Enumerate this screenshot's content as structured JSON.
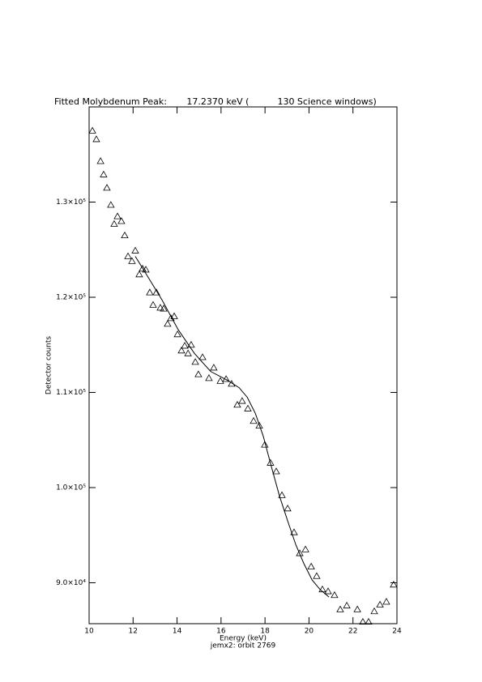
{
  "chart_data": {
    "type": "scatter",
    "title": "Fitted Molybdenum Peak:       17.2370 keV (          130 Science windows)",
    "x_label": "Energy (keV)",
    "subtitle": "jemx2: orbit 2769",
    "y_label": "Detector counts",
    "xlim": [
      10,
      24
    ],
    "xticks": [
      10,
      12,
      14,
      16,
      18,
      20,
      22,
      24
    ],
    "ylim": [
      85700,
      140000
    ],
    "yticks": [
      {
        "value": 90000,
        "label": "9.0×10⁴"
      },
      {
        "value": 100000,
        "label": "1.0×10⁵"
      },
      {
        "value": 110000,
        "label": "1.1×10⁵"
      },
      {
        "value": 120000,
        "label": "1.2×10⁵"
      },
      {
        "value": 130000,
        "label": "1.3×10⁵"
      }
    ],
    "series": [
      {
        "type": "scatter",
        "marker": "triangle",
        "color": "#000000",
        "x": [
          10.15,
          10.33,
          10.52,
          10.66,
          10.81,
          10.99,
          11.14,
          11.29,
          11.47,
          11.62,
          11.77,
          11.95,
          12.1,
          12.28,
          12.43,
          12.58,
          12.76,
          12.91,
          13.06,
          13.24,
          13.39,
          13.57,
          13.72,
          13.87,
          14.02,
          14.2,
          14.35,
          14.5,
          14.64,
          14.83,
          14.97,
          15.16,
          15.45,
          15.67,
          15.97,
          16.23,
          16.48,
          16.74,
          16.96,
          17.22,
          17.48,
          17.74,
          17.99,
          18.25,
          18.51,
          18.77,
          19.03,
          19.32,
          19.58,
          19.84,
          20.1,
          20.35,
          20.61,
          20.87,
          21.16,
          21.42,
          21.72,
          22.2,
          22.45,
          22.71,
          22.97,
          23.23,
          23.52,
          23.85
        ],
        "values": [
          137500,
          136600,
          134300,
          132900,
          131500,
          129700,
          127700,
          128500,
          128000,
          126500,
          124300,
          123800,
          124900,
          122400,
          123000,
          122900,
          120500,
          119200,
          120500,
          118900,
          118800,
          117200,
          117800,
          118000,
          116100,
          114400,
          114900,
          114100,
          115000,
          113200,
          111900,
          113700,
          111500,
          112600,
          111200,
          111400,
          110900,
          108700,
          109100,
          108300,
          107000,
          106500,
          104500,
          102600,
          101700,
          99200,
          97800,
          95300,
          93100,
          93500,
          91700,
          90700,
          89300,
          89100,
          88700,
          87200,
          87600,
          87200,
          85900,
          85900,
          87000,
          87700,
          88000,
          89800
        ]
      },
      {
        "type": "line",
        "color": "#000000",
        "x": [
          12.1,
          12.58,
          13.32,
          14.05,
          14.79,
          15.53,
          16.27,
          16.82,
          17.19,
          17.56,
          17.92,
          18.29,
          18.66,
          19.03,
          19.4,
          19.77,
          20.14,
          20.5,
          20.91
        ],
        "values": [
          124300,
          122500,
          119700,
          116600,
          114100,
          112200,
          111300,
          110500,
          109500,
          107800,
          105400,
          102200,
          99100,
          96500,
          94000,
          92000,
          90300,
          89300,
          88500
        ]
      }
    ]
  }
}
